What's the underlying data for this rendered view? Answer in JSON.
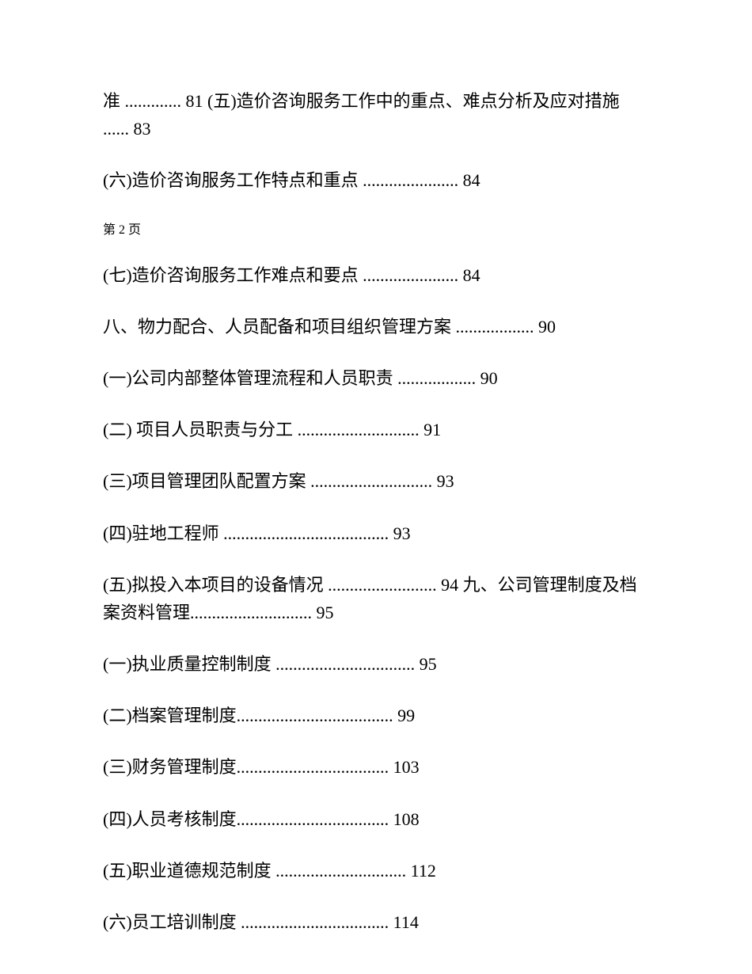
{
  "entries": [
    {
      "text": "准 ............. 81 (五)造价咨询服务工作中的重点、难点分析及应对措施 ...... 83",
      "class": "toc-entry"
    },
    {
      "text": "(六)造价咨询服务工作特点和重点 ...................... 84",
      "class": "toc-entry"
    },
    {
      "text": "第 2 页",
      "class": "page-note"
    },
    {
      "text": "(七)造价咨询服务工作难点和要点 ...................... 84",
      "class": "toc-entry"
    },
    {
      "text": "八、物力配合、人员配备和项目组织管理方案 .................. 90",
      "class": "toc-entry"
    },
    {
      "text": "(一)公司内部整体管理流程和人员职责 .................. 90",
      "class": "toc-entry"
    },
    {
      "text": "(二) 项目人员职责与分工 ............................ 91",
      "class": "toc-entry"
    },
    {
      "text": "(三)项目管理团队配置方案 ............................ 93",
      "class": "toc-entry"
    },
    {
      "text": "(四)驻地工程师 ...................................... 93",
      "class": "toc-entry"
    },
    {
      "text": "(五)拟投入本项目的设备情况 ......................... 94 九、公司管理制度及档案资料管理............................ 95",
      "class": "toc-entry"
    },
    {
      "text": "(一)执业质量控制制度 ................................ 95",
      "class": "toc-entry"
    },
    {
      "text": "(二)档案管理制度.................................... 99",
      "class": "toc-entry"
    },
    {
      "text": "(三)财务管理制度................................... 103",
      "class": "toc-entry"
    },
    {
      "text": "(四)人员考核制度................................... 108",
      "class": "toc-entry"
    },
    {
      "text": "(五)职业道德规范制度 .............................. 112",
      "class": "toc-entry"
    },
    {
      "text": "(六)员工培训制度 .................................. 114",
      "class": "toc-entry"
    }
  ]
}
